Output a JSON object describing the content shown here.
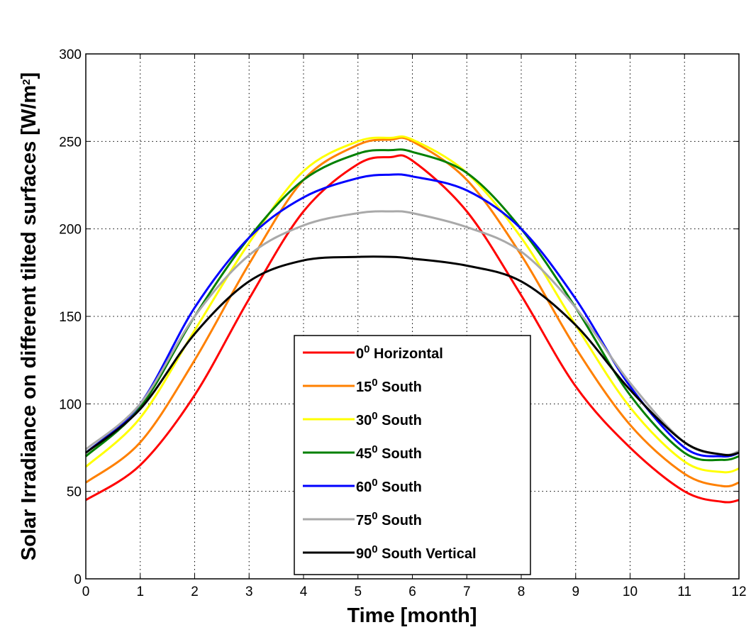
{
  "chart_data": {
    "type": "line",
    "xlabel": "Time [month]",
    "ylabel": "Solar Irradiance on different tilted surfaces [W/m",
    "ylabel_sup": "2",
    "ylabel_suffix": "]",
    "xlim": [
      0,
      12
    ],
    "ylim": [
      0,
      300
    ],
    "xticks": [
      "0",
      "1",
      "2",
      "3",
      "4",
      "5",
      "6",
      "7",
      "8",
      "9",
      "10",
      "11",
      "12"
    ],
    "yticks": [
      "0",
      "50",
      "100",
      "150",
      "200",
      "250",
      "300"
    ],
    "grid": true,
    "legend_position": "bottom-center",
    "series": [
      {
        "legend_sup_value": "0",
        "legend_sup": "0",
        "legend_rest": " Horizontal",
        "color": "#ff0000",
        "points": [
          [
            0,
            45
          ],
          [
            1,
            65
          ],
          [
            2,
            105
          ],
          [
            3,
            160
          ],
          [
            4,
            210
          ],
          [
            5,
            237
          ],
          [
            5.6,
            241
          ],
          [
            6,
            239
          ],
          [
            7,
            210
          ],
          [
            8,
            162
          ],
          [
            9,
            110
          ],
          [
            10,
            75
          ],
          [
            11,
            50
          ],
          [
            11.7,
            44
          ],
          [
            12,
            45
          ]
        ]
      },
      {
        "legend_sup_value": "15",
        "legend_sup": "0",
        "legend_rest": " South",
        "color": "#ff8000",
        "points": [
          [
            0,
            55
          ],
          [
            1,
            78
          ],
          [
            2,
            125
          ],
          [
            3,
            180
          ],
          [
            4,
            228
          ],
          [
            5,
            248
          ],
          [
            5.6,
            251
          ],
          [
            6,
            250
          ],
          [
            7,
            228
          ],
          [
            8,
            185
          ],
          [
            9,
            132
          ],
          [
            10,
            88
          ],
          [
            11,
            60
          ],
          [
            11.7,
            53
          ],
          [
            12,
            55
          ]
        ]
      },
      {
        "legend_sup_value": "30",
        "legend_sup": "0",
        "legend_rest": " South",
        "color": "#ffff00",
        "points": [
          [
            0,
            64
          ],
          [
            1,
            92
          ],
          [
            2,
            142
          ],
          [
            3,
            192
          ],
          [
            4,
            233
          ],
          [
            5,
            250
          ],
          [
            5.6,
            252
          ],
          [
            6,
            251
          ],
          [
            7,
            232
          ],
          [
            8,
            195
          ],
          [
            9,
            145
          ],
          [
            10,
            98
          ],
          [
            11,
            67
          ],
          [
            11.7,
            61
          ],
          [
            12,
            63
          ]
        ]
      },
      {
        "legend_sup_value": "45",
        "legend_sup": "0",
        "legend_rest": " South",
        "color": "#008000",
        "points": [
          [
            0,
            70
          ],
          [
            1,
            98
          ],
          [
            2,
            150
          ],
          [
            3,
            195
          ],
          [
            4,
            228
          ],
          [
            5,
            243
          ],
          [
            5.6,
            245
          ],
          [
            6,
            244
          ],
          [
            7,
            232
          ],
          [
            8,
            200
          ],
          [
            9,
            155
          ],
          [
            10,
            105
          ],
          [
            11,
            72
          ],
          [
            11.7,
            68
          ],
          [
            12,
            70
          ]
        ]
      },
      {
        "legend_sup_value": "60",
        "legend_sup": "0",
        "legend_rest": " South",
        "color": "#0000ff",
        "points": [
          [
            0,
            72
          ],
          [
            1,
            100
          ],
          [
            2,
            155
          ],
          [
            3,
            195
          ],
          [
            4,
            218
          ],
          [
            5,
            229
          ],
          [
            5.6,
            231
          ],
          [
            6,
            230
          ],
          [
            7,
            222
          ],
          [
            8,
            200
          ],
          [
            9,
            160
          ],
          [
            10,
            110
          ],
          [
            11,
            75
          ],
          [
            11.7,
            70
          ],
          [
            12,
            72
          ]
        ]
      },
      {
        "legend_sup_value": "75",
        "legend_sup": "0",
        "legend_rest": " South",
        "color": "#a9a9a9",
        "points": [
          [
            0,
            74
          ],
          [
            1,
            100
          ],
          [
            2,
            150
          ],
          [
            3,
            185
          ],
          [
            4,
            202
          ],
          [
            5,
            209
          ],
          [
            5.6,
            210
          ],
          [
            6,
            209
          ],
          [
            7,
            201
          ],
          [
            8,
            187
          ],
          [
            9,
            155
          ],
          [
            10,
            112
          ],
          [
            11,
            78
          ],
          [
            11.7,
            71
          ],
          [
            12,
            73
          ]
        ]
      },
      {
        "legend_sup_value": "90",
        "legend_sup": "0",
        "legend_rest": " South Vertical",
        "color": "#000000",
        "points": [
          [
            0,
            72
          ],
          [
            1,
            97
          ],
          [
            2,
            140
          ],
          [
            3,
            170
          ],
          [
            4,
            182
          ],
          [
            5,
            184
          ],
          [
            5.6,
            184
          ],
          [
            6,
            183
          ],
          [
            7,
            179
          ],
          [
            8,
            170
          ],
          [
            9,
            145
          ],
          [
            10,
            108
          ],
          [
            11,
            78
          ],
          [
            11.7,
            71
          ],
          [
            12,
            72
          ]
        ]
      }
    ]
  }
}
